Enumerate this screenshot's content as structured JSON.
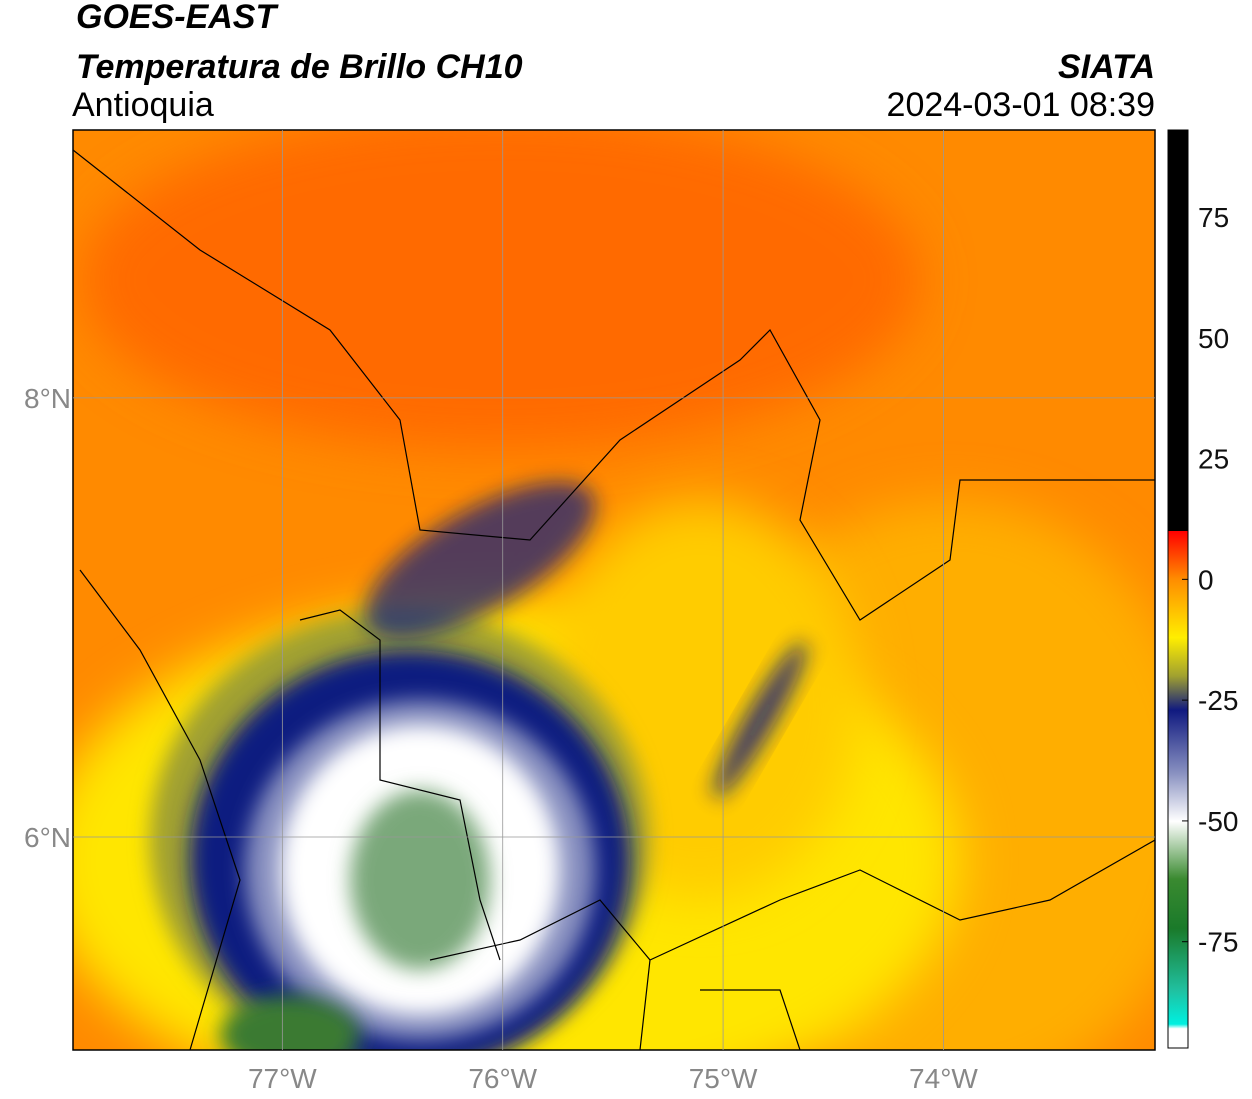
{
  "header": {
    "title": "GOES-EAST",
    "subtitle": "Temperatura de Brillo CH10",
    "region": "Antioquia",
    "source": "SIATA",
    "datetime": "2024-03-01 08:39"
  },
  "map": {
    "type": "map",
    "xlim": [
      -77.95,
      -73.04
    ],
    "ylim": [
      5.03,
      9.22
    ],
    "xticks": [
      {
        "value": -77,
        "label": "77°W"
      },
      {
        "value": -76,
        "label": "76°W"
      },
      {
        "value": -75,
        "label": "75°W"
      },
      {
        "value": -74,
        "label": "74°W"
      }
    ],
    "yticks": [
      {
        "value": 6,
        "label": "6°N"
      },
      {
        "value": 8,
        "label": "8°N"
      }
    ],
    "grid": true
  },
  "colorbar": {
    "lim": [
      -97,
      93
    ],
    "ticks": [
      -75,
      -50,
      -25,
      0,
      25,
      50,
      75
    ]
  }
}
